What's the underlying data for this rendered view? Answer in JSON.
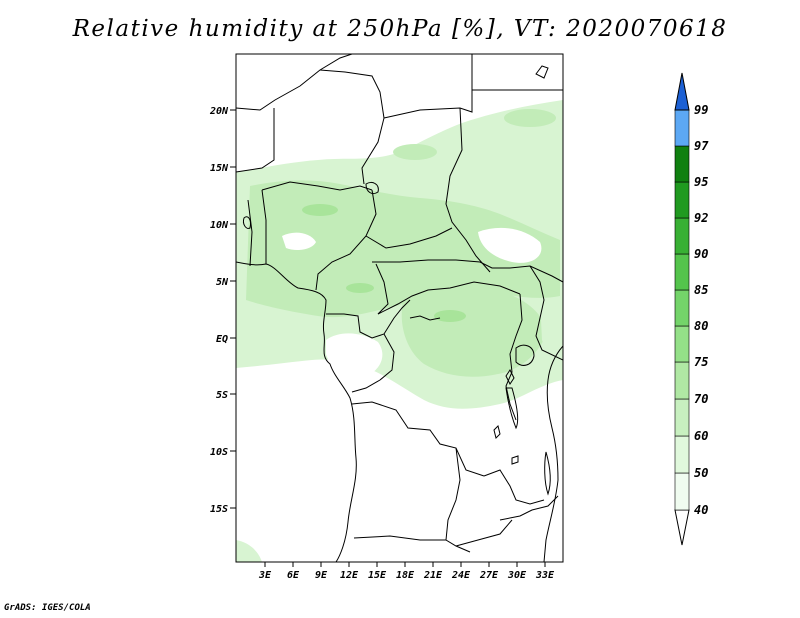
{
  "title": "Relative humidity at 250hPa [%], VT: 2020070618",
  "footer": "GrADS: IGES/COLA",
  "map": {
    "variable": "Relative humidity",
    "level": "250hPa",
    "units": "%",
    "valid_time": "2020070618",
    "lat_labels": [
      "20N",
      "15N",
      "10N",
      "5N",
      "EQ",
      "5S",
      "10S",
      "15S"
    ],
    "lon_labels": [
      "3E",
      "6E",
      "9E",
      "12E",
      "15E",
      "18E",
      "21E",
      "24E",
      "27E",
      "30E",
      "33E"
    ]
  },
  "colorbar": {
    "levels": [
      "40",
      "50",
      "60",
      "70",
      "75",
      "80",
      "85",
      "90",
      "92",
      "95",
      "97",
      "99"
    ],
    "colors": [
      "#f0fcf0",
      "#e0f8dc",
      "#c8f0c0",
      "#b0e8a4",
      "#94e088",
      "#74d46a",
      "#54c44c",
      "#38b034",
      "#209a20",
      "#108010",
      "#5ca8f4",
      "#3a84e8",
      "#1c60d4"
    ]
  }
}
